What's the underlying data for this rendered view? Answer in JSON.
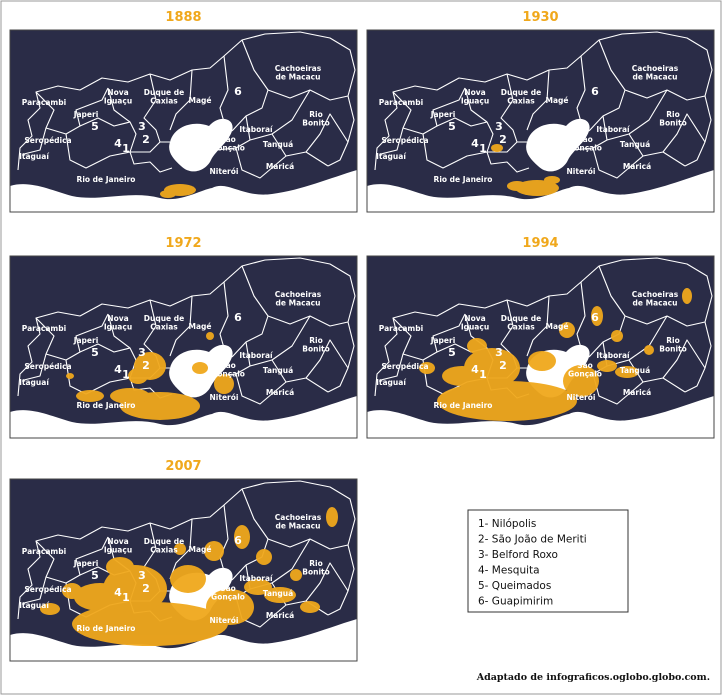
{
  "panels": [
    {
      "year": "1888"
    },
    {
      "year": "1930"
    },
    {
      "year": "1972"
    },
    {
      "year": "1994"
    },
    {
      "year": "2007"
    }
  ],
  "map_labels": [
    {
      "lines": [
        "Paracambi"
      ]
    },
    {
      "lines": [
        "Nova",
        "Iguaçu"
      ]
    },
    {
      "lines": [
        "Duque de",
        "Caxias"
      ]
    },
    {
      "lines": [
        "Magé"
      ]
    },
    {
      "lines": [
        "6"
      ]
    },
    {
      "lines": [
        "Cachoeiras",
        "de Macacu"
      ]
    },
    {
      "lines": [
        "Japeri"
      ]
    },
    {
      "lines": [
        "5"
      ]
    },
    {
      "lines": [
        "3"
      ]
    },
    {
      "lines": [
        "2"
      ]
    },
    {
      "lines": [
        "1"
      ]
    },
    {
      "lines": [
        "4"
      ]
    },
    {
      "lines": [
        "Seropédica"
      ]
    },
    {
      "lines": [
        "Itaguaí"
      ]
    },
    {
      "lines": [
        "Rio de Janeiro"
      ]
    },
    {
      "lines": [
        "São",
        "Gonçalo"
      ]
    },
    {
      "lines": [
        "Niterói"
      ]
    },
    {
      "lines": [
        "Itaboraí"
      ]
    },
    {
      "lines": [
        "Tanguá"
      ]
    },
    {
      "lines": [
        "Maricá"
      ]
    },
    {
      "lines": [
        "Rio",
        "Bonito"
      ]
    }
  ],
  "legend": [
    "1- Nilópolis",
    "2- São João de Meriti",
    "3- Belford Roxo",
    "4- Mesquita",
    "5- Queimados",
    "6- Guapimirim"
  ],
  "source": "Adaptado de infograficos.oglobo.globo.com."
}
